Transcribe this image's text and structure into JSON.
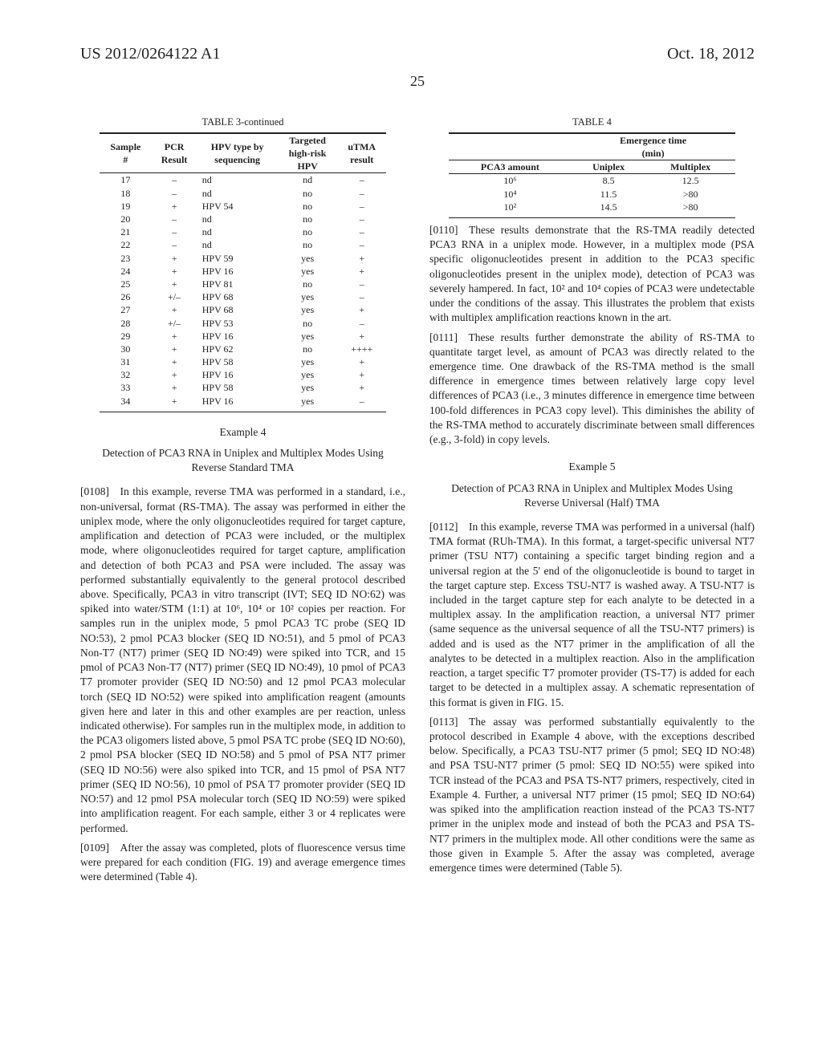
{
  "header": {
    "left": "US 2012/0264122 A1",
    "right": "Oct. 18, 2012",
    "page": "25"
  },
  "table3": {
    "title": "TABLE 3-continued",
    "columns": [
      "Sample\n#",
      "PCR\nResult",
      "HPV type by\nsequencing",
      "Targeted\nhigh-risk\nHPV",
      "uTMA\nresult"
    ],
    "rows": [
      [
        "17",
        "–",
        "nd",
        "nd",
        "–"
      ],
      [
        "18",
        "–",
        "nd",
        "no",
        "–"
      ],
      [
        "19",
        "+",
        "HPV 54",
        "no",
        "–"
      ],
      [
        "20",
        "–",
        "nd",
        "no",
        "–"
      ],
      [
        "21",
        "–",
        "nd",
        "no",
        "–"
      ],
      [
        "22",
        "–",
        "nd",
        "no",
        "–"
      ],
      [
        "23",
        "+",
        "HPV 59",
        "yes",
        "+"
      ],
      [
        "24",
        "+",
        "HPV 16",
        "yes",
        "+"
      ],
      [
        "25",
        "+",
        "HPV 81",
        "no",
        "–"
      ],
      [
        "26",
        "+/–",
        "HPV 68",
        "yes",
        "–"
      ],
      [
        "27",
        "+",
        "HPV 68",
        "yes",
        "+"
      ],
      [
        "28",
        "+/–",
        "HPV 53",
        "no",
        "–"
      ],
      [
        "29",
        "+",
        "HPV 16",
        "yes",
        "+"
      ],
      [
        "30",
        "+",
        "HPV 62",
        "no",
        "++++"
      ],
      [
        "31",
        "+",
        "HPV 58",
        "yes",
        "+"
      ],
      [
        "32",
        "+",
        "HPV 16",
        "yes",
        "+"
      ],
      [
        "33",
        "+",
        "HPV 58",
        "yes",
        "+"
      ],
      [
        "34",
        "+",
        "HPV 16",
        "yes",
        "–"
      ]
    ]
  },
  "table4": {
    "title": "TABLE 4",
    "span_header": "Emergence time\n(min)",
    "columns": [
      "PCA3 amount",
      "Uniplex",
      "Multiplex"
    ],
    "rows": [
      [
        "10⁶",
        "8.5",
        "12.5"
      ],
      [
        "10⁴",
        "11.5",
        ">80"
      ],
      [
        "10²",
        "14.5",
        ">80"
      ]
    ]
  },
  "example4": {
    "heading": "Example 4",
    "title": "Detection of PCA3 RNA in Uniplex and Multiplex Modes Using Reverse Standard TMA"
  },
  "example5": {
    "heading": "Example 5",
    "title": "Detection of PCA3 RNA in Uniplex and Multiplex Modes Using Reverse Universal (Half) TMA"
  },
  "paragraphs": {
    "p0108": "[0108] In this example, reverse TMA was performed in a standard, i.e., non-universal, format (RS-TMA). The assay was performed in either the uniplex mode, where the only oligonucleotides required for target capture, amplification and detection of PCA3 were included, or the multiplex mode, where oligonucleotides required for target capture, amplification and detection of both PCA3 and PSA were included. The assay was performed substantially equivalently to the general protocol described above. Specifically, PCA3 in vitro transcript (IVT; SEQ ID NO:62) was spiked into water/STM (1:1) at 10⁶, 10⁴ or 10² copies per reaction. For samples run in the uniplex mode, 5 pmol PCA3 TC probe (SEQ ID NO:53), 2 pmol PCA3 blocker (SEQ ID NO:51), and 5 pmol of PCA3 Non-T7 (NT7) primer (SEQ ID NO:49) were spiked into TCR, and 15 pmol of PCA3 Non-T7 (NT7) primer (SEQ ID NO:49), 10 pmol of PCA3 T7 promoter provider (SEQ ID NO:50) and 12 pmol PCA3 molecular torch (SEQ ID NO:52) were spiked into amplification reagent (amounts given here and later in this and other examples are per reaction, unless indicated otherwise). For samples run in the multiplex mode, in addition to the PCA3 oligomers listed above, 5 pmol PSA TC probe (SEQ ID NO:60), 2 pmol PSA blocker (SEQ ID NO:58) and 5 pmol of PSA NT7 primer (SEQ ID NO:56) were also spiked into TCR, and 15 pmol of PSA NT7 primer (SEQ ID NO:56), 10 pmol of PSA T7 promoter provider (SEQ ID NO:57) and 12 pmol PSA molecular torch (SEQ ID NO:59) were spiked into amplification reagent. For each sample, either 3 or 4 replicates were performed.",
    "p0109": "[0109] After the assay was completed, plots of fluorescence versus time were prepared for each condition (FIG. 19) and average emergence times were determined (Table 4).",
    "p0110": "[0110] These results demonstrate that the RS-TMA readily detected PCA3 RNA in a uniplex mode. However, in a multiplex mode (PSA specific oligonucleotides present in addition to the PCA3 specific oligonucleotides present in the uniplex mode), detection of PCA3 was severely hampered. In fact, 10² and 10⁴ copies of PCA3 were undetectable under the conditions of the assay. This illustrates the problem that exists with multiplex amplification reactions known in the art.",
    "p0111": "[0111] These results further demonstrate the ability of RS-TMA to quantitate target level, as amount of PCA3 was directly related to the emergence time. One drawback of the RS-TMA method is the small difference in emergence times between relatively large copy level differences of PCA3 (i.e., 3 minutes difference in emergence time between 100-fold differences in PCA3 copy level). This diminishes the ability of the RS-TMA method to accurately discriminate between small differences (e.g., 3-fold) in copy levels.",
    "p0112": "[0112] In this example, reverse TMA was performed in a universal (half) TMA format (RUh-TMA). In this format, a target-specific universal NT7 primer (TSU NT7) containing a specific target binding region and a universal region at the 5' end of the oligonucleotide is bound to target in the target capture step. Excess TSU-NT7 is washed away. A TSU-NT7 is included in the target capture step for each analyte to be detected in a multiplex assay. In the amplification reaction, a universal NT7 primer (same sequence as the universal sequence of all the TSU-NT7 primers) is added and is used as the NT7 primer in the amplification of all the analytes to be detected in a multiplex reaction. Also in the amplification reaction, a target specific T7 promoter provider (TS-T7) is added for each target to be detected in a multiplex assay. A schematic representation of this format is given in FIG. 15.",
    "p0113": "[0113] The assay was performed substantially equivalently to the protocol described in Example 4 above, with the exceptions described below. Specifically, a PCA3 TSU-NT7 primer (5 pmol; SEQ ID NO:48) and PSA TSU-NT7 primer (5 pmol: SEQ ID NO:55) were spiked into TCR instead of the PCA3 and PSA TS-NT7 primers, respectively, cited in Example 4. Further, a universal NT7 primer (15 pmol; SEQ ID NO:64) was spiked into the amplification reaction instead of the PCA3 TS-NT7 primer in the uniplex mode and instead of both the PCA3 and PSA TS-NT7 primers in the multiplex mode. All other conditions were the same as those given in Example 5. After the assay was completed, average emergence times were determined (Table 5)."
  }
}
